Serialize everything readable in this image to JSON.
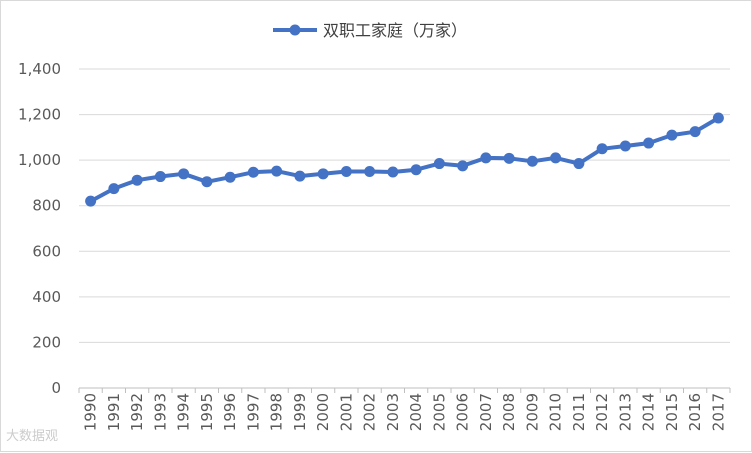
{
  "chart_data": {
    "type": "line",
    "title": "",
    "xlabel": "",
    "ylabel": "",
    "ylim": [
      0,
      1400
    ],
    "yticks": [
      0,
      200,
      400,
      600,
      800,
      1000,
      1200,
      1400
    ],
    "ytick_labels": [
      "0",
      "200",
      "400",
      "600",
      "800",
      "1,000",
      "1,200",
      "1,400"
    ],
    "grid": true,
    "legend_position": "top-center",
    "categories": [
      "1990",
      "1991",
      "1992",
      "1993",
      "1994",
      "1995",
      "1996",
      "1997",
      "1998",
      "1999",
      "2000",
      "2001",
      "2002",
      "2003",
      "2004",
      "2005",
      "2006",
      "2007",
      "2008",
      "2009",
      "2010",
      "2011",
      "2012",
      "2013",
      "2014",
      "2015",
      "2016",
      "2017"
    ],
    "series": [
      {
        "name": "双职工家庭（万家）",
        "color": "#4472c4",
        "values": [
          820,
          875,
          912,
          928,
          940,
          905,
          925,
          947,
          952,
          930,
          940,
          950,
          950,
          948,
          958,
          985,
          975,
          1010,
          1008,
          995,
          1010,
          985,
          1050,
          1062,
          1075,
          1110,
          1125,
          1185
        ]
      }
    ]
  },
  "watermark": "大数据观"
}
